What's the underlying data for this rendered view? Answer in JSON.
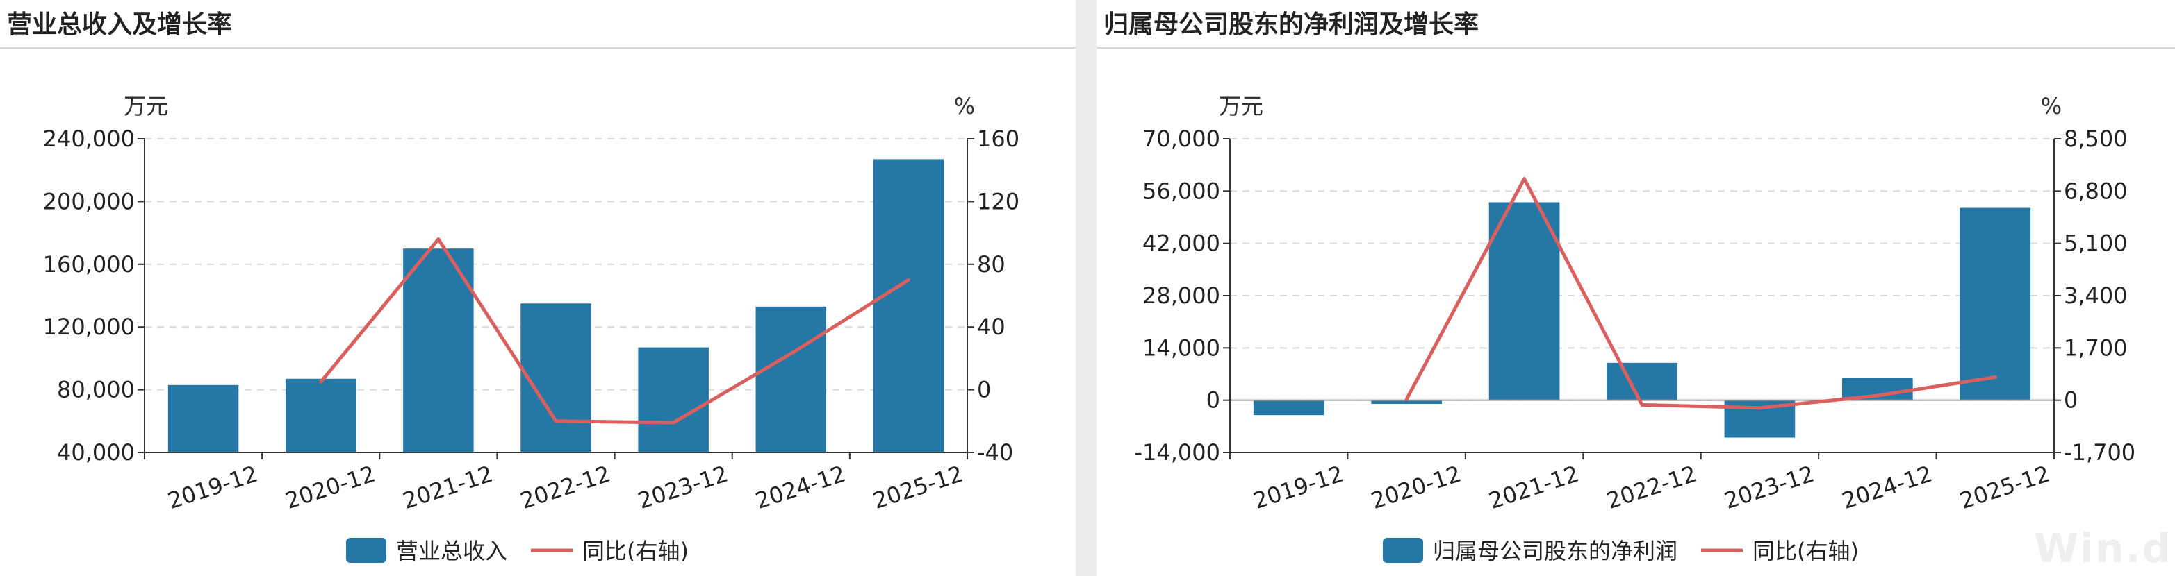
{
  "watermark": "Win.d",
  "colors": {
    "bar": "#2577a6",
    "line": "#d9605f",
    "grid": "#d9d9d9",
    "axis": "#333333"
  },
  "chart_data": [
    {
      "type": "bar",
      "title": "营业总收入及增长率",
      "categories": [
        "2019-12",
        "2020-12",
        "2021-12",
        "2022-12",
        "2023-12",
        "2024-12",
        "2025-12"
      ],
      "left_unit": "万元",
      "right_unit": "%",
      "ylim": [
        40000,
        240000
      ],
      "yticks": [
        40000,
        80000,
        120000,
        160000,
        200000,
        240000
      ],
      "y2lim": [
        -40,
        160
      ],
      "y2ticks": [
        -40,
        0,
        40,
        80,
        120,
        160
      ],
      "grid": true,
      "legend_position": "bottom-center",
      "series": [
        {
          "name": "营业总收入",
          "type": "bar",
          "axis": "left",
          "values": [
            83000,
            87000,
            170000,
            135000,
            107000,
            133000,
            227000
          ]
        },
        {
          "name": "同比(右轴)",
          "type": "line",
          "axis": "right",
          "values": [
            null,
            5,
            96,
            -20,
            -21,
            23,
            70
          ]
        }
      ]
    },
    {
      "type": "bar",
      "title": "归属母公司股东的净利润及增长率",
      "categories": [
        "2019-12",
        "2020-12",
        "2021-12",
        "2022-12",
        "2023-12",
        "2024-12",
        "2025-12"
      ],
      "left_unit": "万元",
      "right_unit": "%",
      "ylim": [
        -14000,
        70000
      ],
      "yticks": [
        -14000,
        0,
        14000,
        28000,
        42000,
        56000,
        70000
      ],
      "y2lim": [
        -1700,
        8500
      ],
      "y2ticks": [
        -1700,
        0,
        1700,
        3400,
        5100,
        6800,
        8500
      ],
      "grid": true,
      "legend_position": "bottom-center",
      "series": [
        {
          "name": "归属母公司股东的净利润",
          "type": "bar",
          "axis": "left",
          "values": [
            -4000,
            -1000,
            53000,
            10000,
            -10000,
            6000,
            51500
          ]
        },
        {
          "name": "同比(右轴)",
          "type": "line",
          "axis": "right",
          "values": [
            null,
            30,
            7200,
            -150,
            -250,
            150,
            750
          ]
        }
      ]
    }
  ]
}
